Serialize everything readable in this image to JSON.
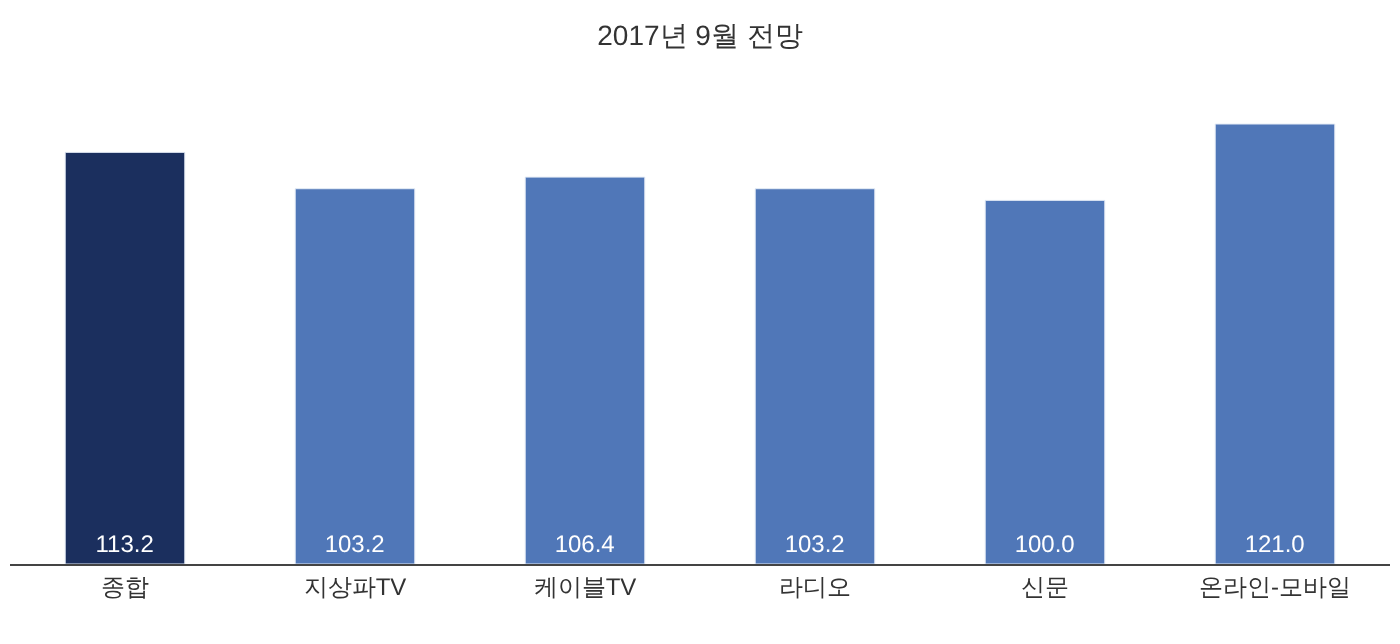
{
  "chart_data": {
    "type": "bar",
    "title": "2017년 9월 전망",
    "categories": [
      "종합",
      "지상파TV",
      "케이블TV",
      "라디오",
      "신문",
      "온라인-모바일"
    ],
    "values": [
      113.2,
      103.2,
      106.4,
      103.2,
      100.0,
      121.0
    ],
    "colors": [
      "#1b2f5e",
      "#5077b8",
      "#5077b8",
      "#5077b8",
      "#5077b8",
      "#5077b8"
    ],
    "value_labels": [
      "113.2",
      "103.2",
      "106.4",
      "103.2",
      "100.0",
      "121.0"
    ],
    "legend": false
  }
}
